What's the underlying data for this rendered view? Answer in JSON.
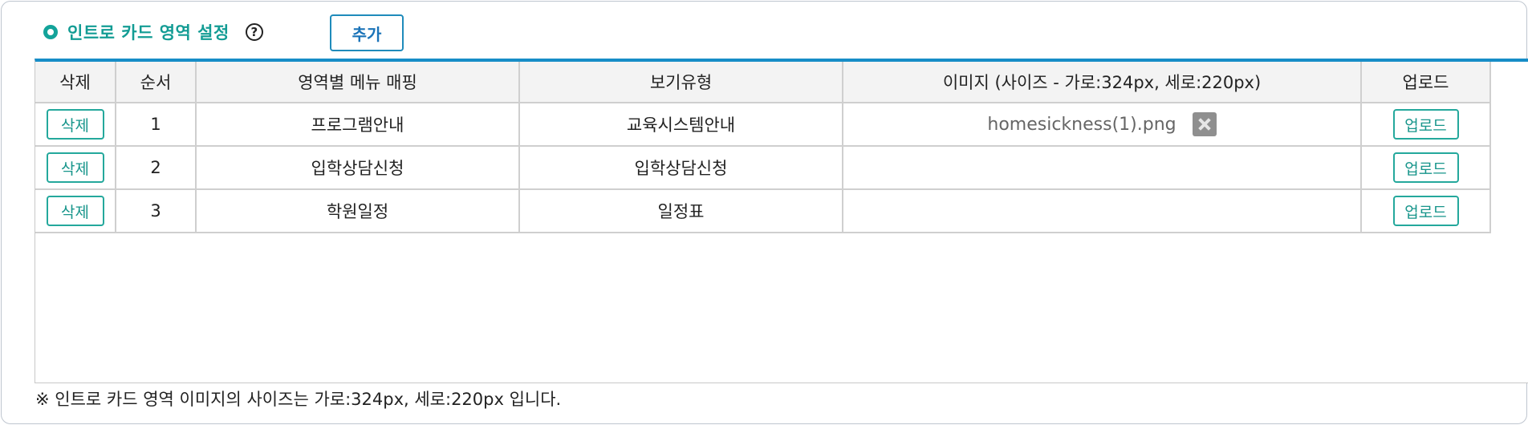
{
  "section": {
    "title": "인트로 카드 영역 설정",
    "add_label": "추가"
  },
  "table": {
    "columns": [
      "삭제",
      "순서",
      "영역별 메뉴 매핑",
      "보기유형",
      "이미지 (사이즈 - 가로:324px, 세로:220px)",
      "업로드"
    ],
    "rows": [
      {
        "delete_label": "삭제",
        "order": "1",
        "menu": "프로그램안내",
        "view_type": "교육시스템안내",
        "image": "homesickness(1).png",
        "upload_label": "업로드"
      },
      {
        "delete_label": "삭제",
        "order": "2",
        "menu": "입학상담신청",
        "view_type": "입학상담신청",
        "image": "",
        "upload_label": "업로드"
      },
      {
        "delete_label": "삭제",
        "order": "3",
        "menu": "학원일정",
        "view_type": "일정표",
        "image": "",
        "upload_label": "업로드"
      }
    ]
  },
  "footnote": "※ 인트로 카드 영역 이미지의 사이즈는 가로:324px, 세로:220px 입니다.",
  "icons": {
    "section_bullet": "radio-bullet-icon",
    "help": "question-circle-icon",
    "file_remove": "remove-file-icon"
  },
  "colors": {
    "accent_teal": "#139c94",
    "table_top_border": "#178dc7",
    "add_button_border": "#1f8bbb"
  }
}
